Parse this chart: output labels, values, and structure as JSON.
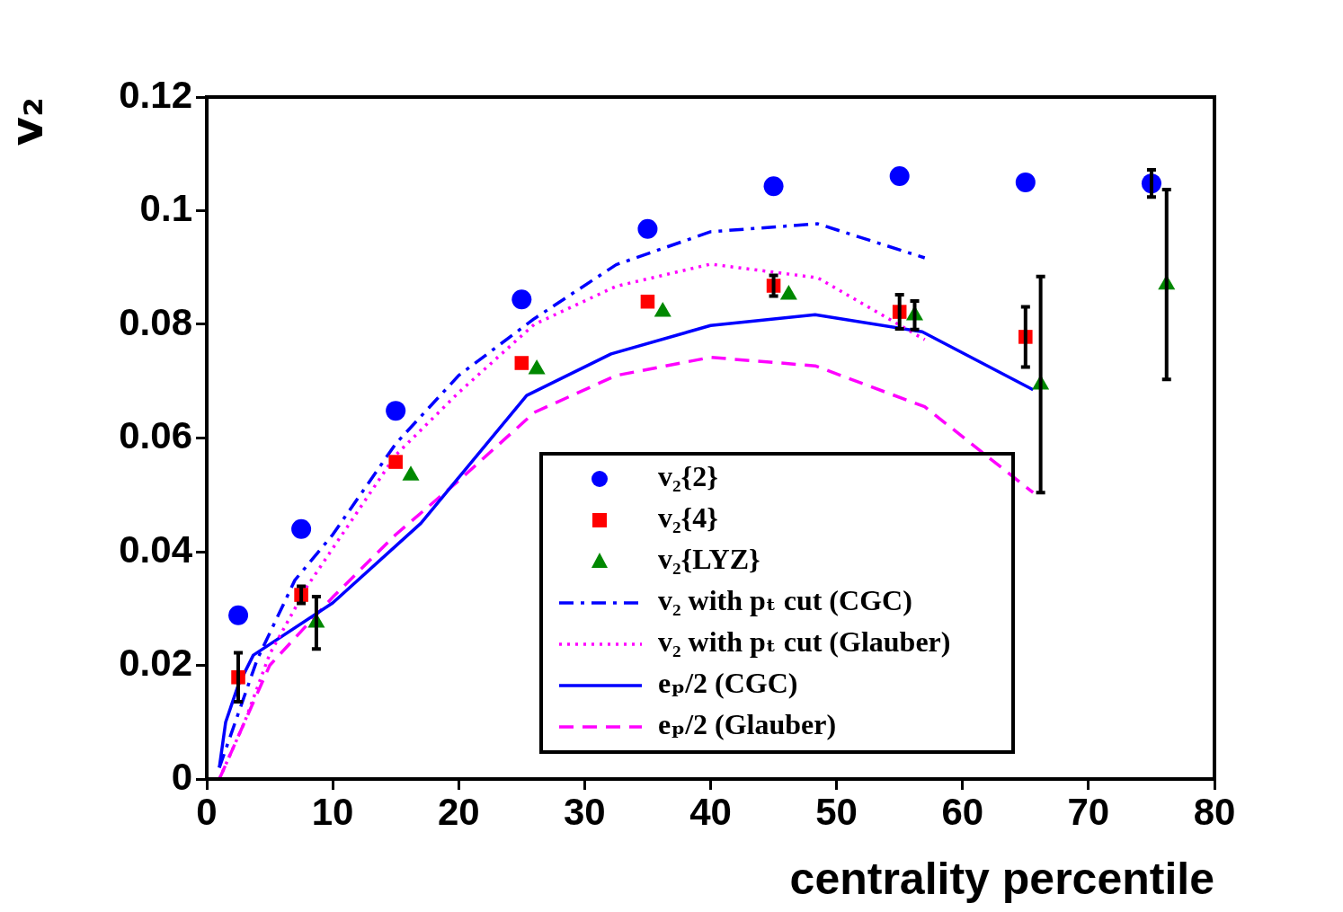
{
  "chart_data": {
    "type": "scatter",
    "xlabel": "centrality percentile",
    "ylabel": "v₂",
    "xlim": [
      0,
      80
    ],
    "ylim": [
      0,
      0.12
    ],
    "xticks": [
      0,
      10,
      20,
      30,
      40,
      50,
      60,
      70,
      80
    ],
    "yticks": [
      0,
      0.02,
      0.04,
      0.06,
      0.08,
      0.1,
      0.12
    ],
    "grid": false,
    "legend": "bottom right",
    "series": [
      {
        "name": "v₂{2}",
        "marker": "circle",
        "color": "#0000ff",
        "x": [
          2.5,
          7.5,
          15,
          25,
          35,
          45,
          55,
          65,
          75
        ],
        "values": [
          0.0288,
          0.044,
          0.0648,
          0.0844,
          0.0968,
          0.1043,
          0.1061,
          0.105,
          0.1048
        ],
        "errors": [
          null,
          null,
          null,
          null,
          null,
          null,
          null,
          null,
          0.0024
        ]
      },
      {
        "name": "v₂{4}",
        "marker": "square",
        "color": "#ff0000",
        "x": [
          2.5,
          7.5,
          15,
          25,
          35,
          45,
          55,
          65
        ],
        "values": [
          0.0179,
          0.0324,
          0.0558,
          0.0732,
          0.084,
          0.0868,
          0.0822,
          0.0778
        ],
        "errors": [
          0.0043,
          0.0015,
          null,
          null,
          null,
          0.0018,
          0.003,
          0.0053
        ]
      },
      {
        "name": "v₂{LYZ}",
        "marker": "triangle",
        "color": "#008800",
        "x": [
          8.7,
          16.2,
          26.2,
          36.2,
          46.2,
          56.2,
          66.2,
          76.2
        ],
        "values": [
          0.0275,
          0.0534,
          0.0721,
          0.0822,
          0.0852,
          0.0816,
          0.0694,
          0.087
        ],
        "errors": [
          0.0046,
          null,
          null,
          null,
          null,
          0.0025,
          0.019,
          0.0167
        ]
      },
      {
        "name": "v₂ with pₜ cut (CGC)",
        "type": "line",
        "line_style": "dashdot",
        "color": "#0000ff",
        "x": [
          1,
          4,
          7,
          10,
          15,
          20,
          26,
          32.5,
          40,
          48.5,
          57
        ],
        "values": [
          0.002,
          0.021,
          0.035,
          0.043,
          0.059,
          0.071,
          0.081,
          0.0905,
          0.0963,
          0.0977,
          0.0917
        ]
      },
      {
        "name": "v₂ with pₜ cut (Glauber)",
        "type": "line",
        "line_style": "dotted",
        "color": "#ff00ff",
        "x": [
          1,
          3,
          5,
          8,
          15,
          20,
          26,
          32.5,
          40,
          48.5,
          57
        ],
        "values": [
          0,
          0.01,
          0.022,
          0.034,
          0.057,
          0.068,
          0.08,
          0.0867,
          0.0906,
          0.0882,
          0.0773
        ]
      },
      {
        "name": "eₚ/2 (CGC)",
        "type": "line",
        "line_style": "solid",
        "color": "#0000ff",
        "x": [
          1,
          1.5,
          2.5,
          3.7,
          10,
          17,
          25.4,
          32.1,
          40,
          48.3,
          56.8,
          65.6
        ],
        "values": [
          0.002,
          0.01,
          0.0165,
          0.0218,
          0.031,
          0.045,
          0.0675,
          0.0748,
          0.0798,
          0.0817,
          0.0787,
          0.0685
        ]
      },
      {
        "name": "eₚ/2 (Glauber)",
        "type": "line",
        "line_style": "dashed",
        "color": "#ff00ff",
        "x": [
          1,
          3,
          5,
          10,
          15,
          20,
          26,
          32.5,
          40,
          48.3,
          57,
          65.6
        ],
        "values": [
          0,
          0.01,
          0.02,
          0.032,
          0.043,
          0.0525,
          0.0645,
          0.071,
          0.0742,
          0.0727,
          0.0655,
          0.0504
        ]
      }
    ]
  }
}
